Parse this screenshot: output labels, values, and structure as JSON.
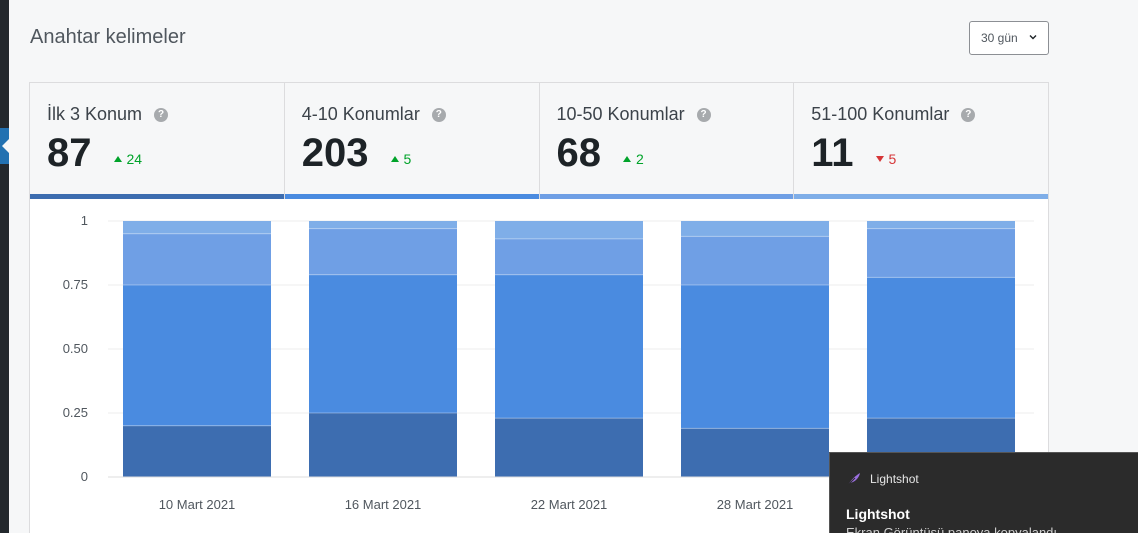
{
  "header": {
    "title": "Anahtar kelimeler",
    "period_select": {
      "value": "30 gün"
    }
  },
  "cards": [
    {
      "label": "İlk 3 Konum",
      "value": "87",
      "delta": "24",
      "direction": "up",
      "bar_color": "#3d6db0"
    },
    {
      "label": "4-10 Konumlar",
      "value": "203",
      "delta": "5",
      "direction": "up",
      "bar_color": "#4a8be0"
    },
    {
      "label": "10-50 Konumlar",
      "value": "68",
      "delta": "2",
      "direction": "up",
      "bar_color": "#6f9fe5"
    },
    {
      "label": "51-100 Konumlar",
      "value": "11",
      "delta": "5",
      "direction": "down",
      "bar_color": "#7faee8"
    }
  ],
  "chart_data": {
    "type": "bar",
    "stacked": true,
    "categories": [
      "10 Mart 2021",
      "16 Mart 2021",
      "22 Mart 2021",
      "28 Mart 2021",
      ""
    ],
    "yticks": [
      "0",
      "0.25",
      "0.50",
      "0.75",
      "1"
    ],
    "ylim": [
      0,
      1
    ],
    "grid": true,
    "series": [
      {
        "values": [
          0.2,
          0.25,
          0.23,
          0.19,
          0.23
        ],
        "color": "#3d6db0"
      },
      {
        "values": [
          0.55,
          0.54,
          0.56,
          0.56,
          0.55
        ],
        "color": "#4a8be0"
      },
      {
        "values": [
          0.2,
          0.18,
          0.14,
          0.19,
          0.19
        ],
        "color": "#6f9fe5"
      },
      {
        "values": [
          0.05,
          0.03,
          0.07,
          0.06,
          0.03
        ],
        "color": "#7faee8"
      }
    ]
  },
  "toast": {
    "app": "Lightshot",
    "title": "Lightshot",
    "body": "Ekran Görüntüsü panoya kopyalandı"
  }
}
